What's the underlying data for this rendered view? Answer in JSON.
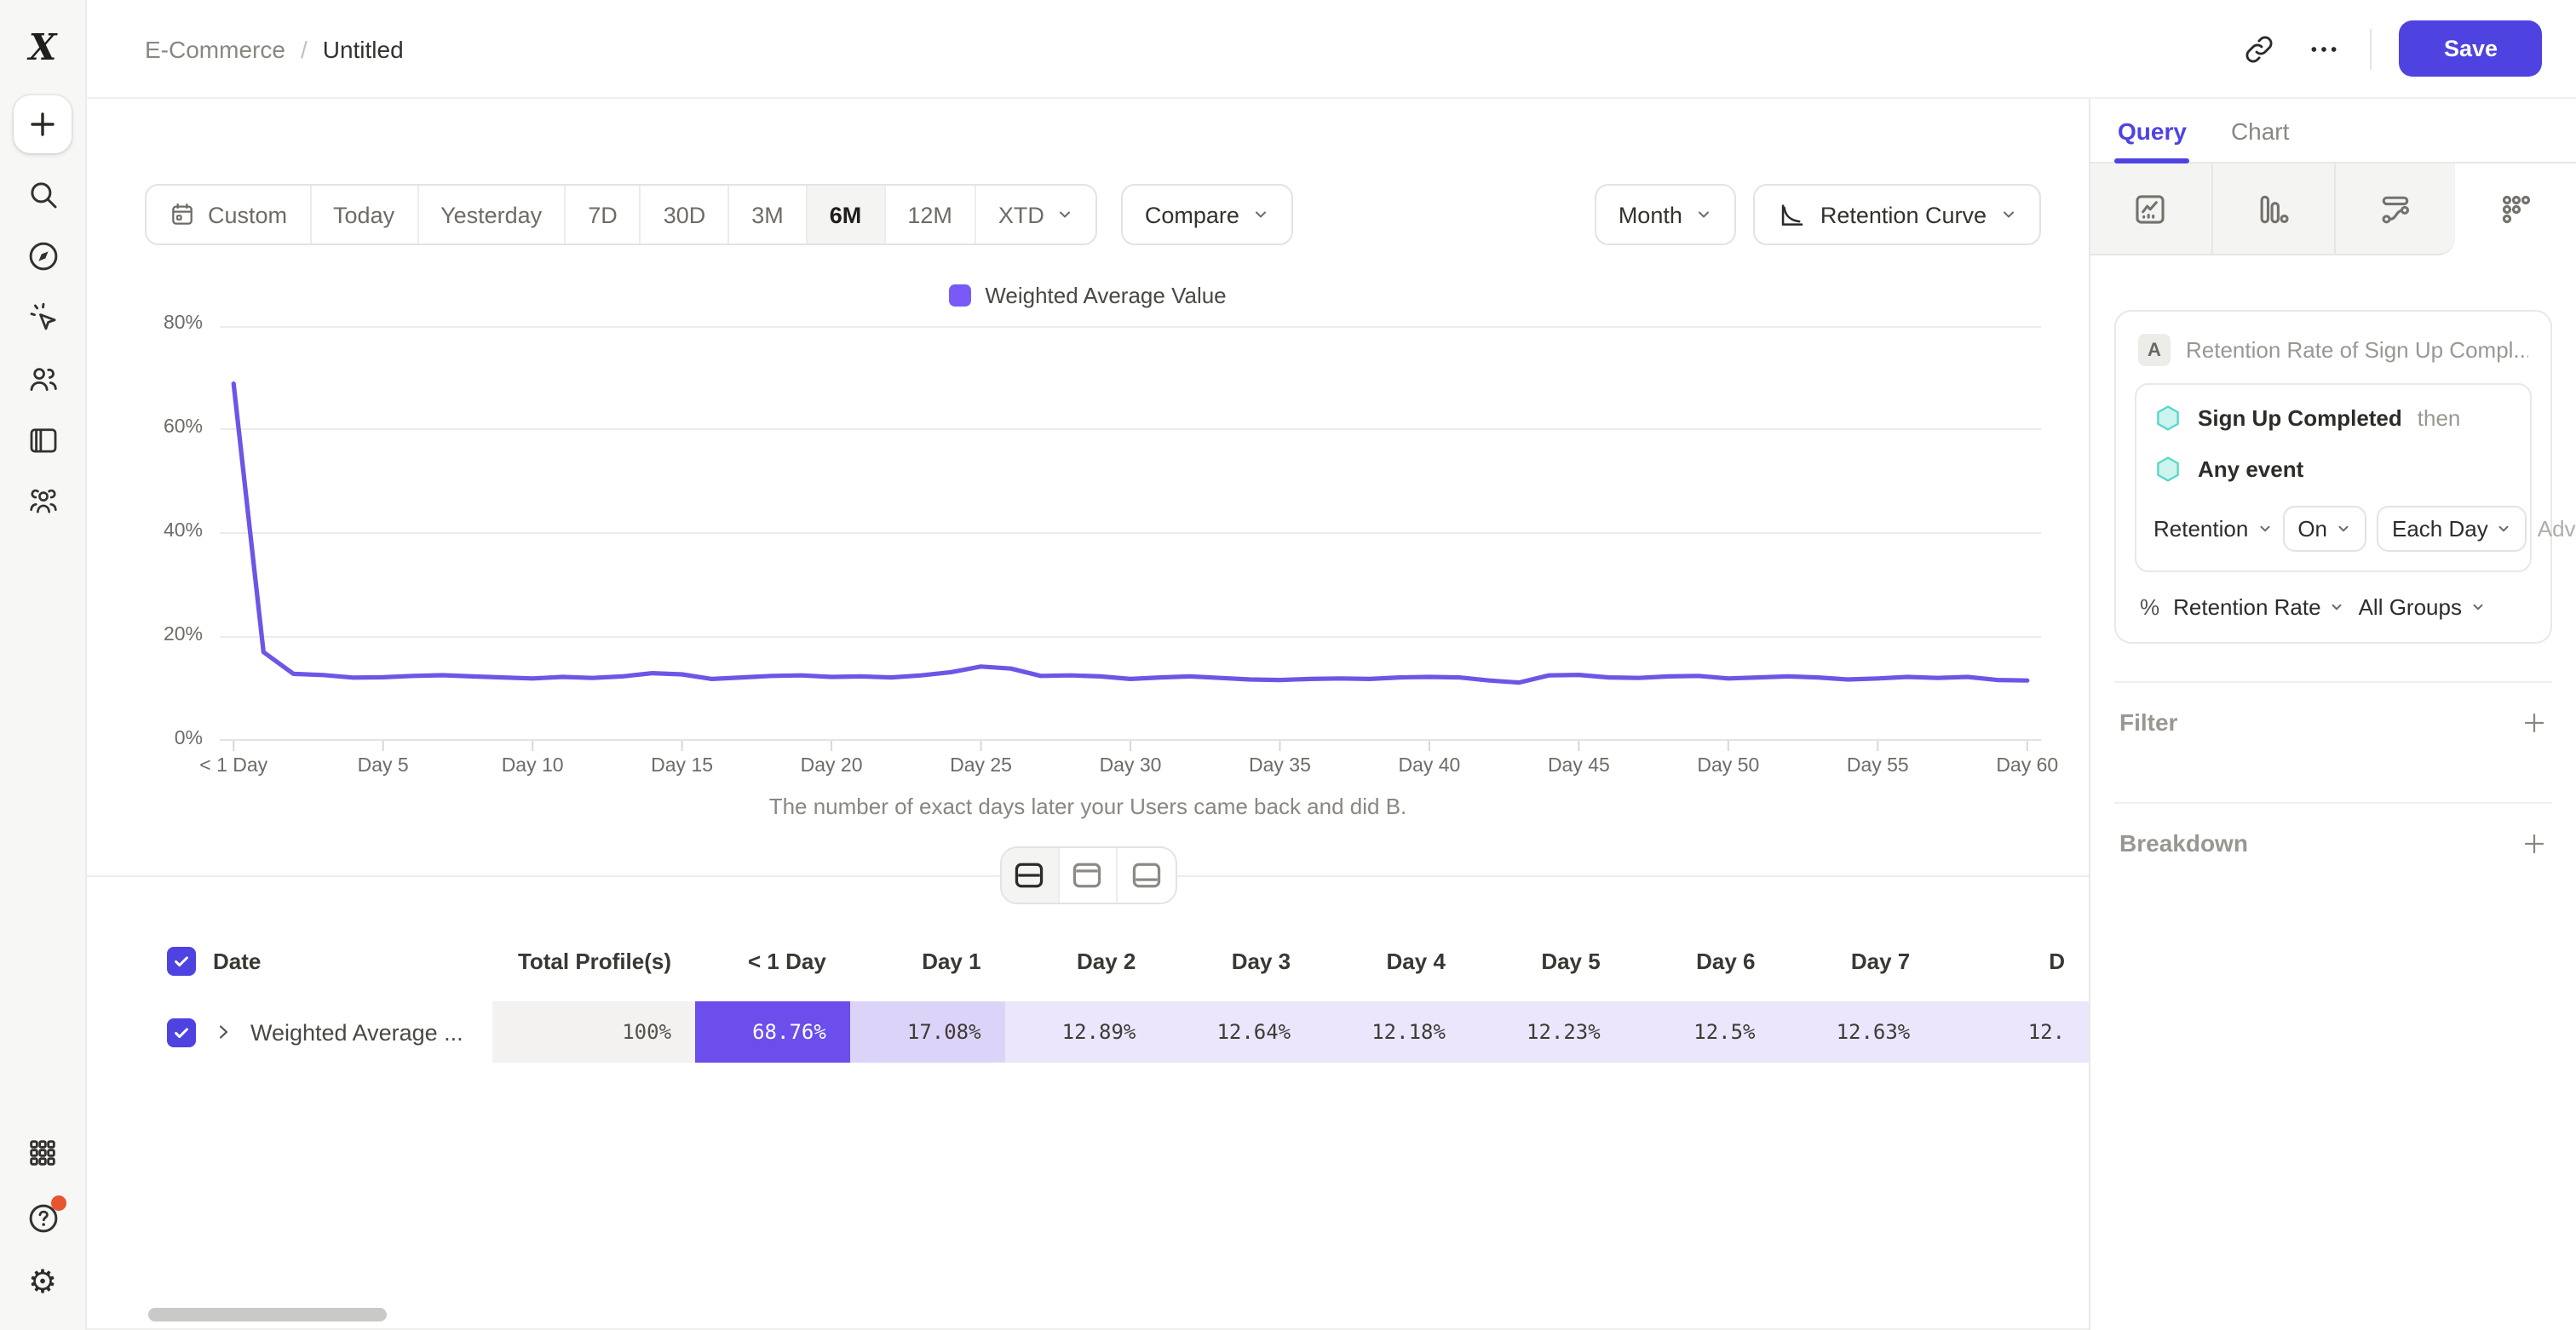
{
  "colors": {
    "accent": "#4E43E1",
    "line": "#6F55E6",
    "legend_square": "#7A5AF6",
    "hex_fill": "#CDF3EE",
    "hex_stroke": "#56D6C9",
    "retention_icon": "#3ECCC0",
    "notification_dot": "#E8542F"
  },
  "sidebar": {
    "logo": "mixpanel-logo",
    "icons_top": [
      "plus",
      "search",
      "compass",
      "cursor-spark",
      "users",
      "boards",
      "cohorts"
    ],
    "icons_bottom": [
      "apps-grid",
      "help",
      "settings-gear"
    ]
  },
  "header": {
    "breadcrumb_root": "E-Commerce",
    "breadcrumb_separator": "/",
    "breadcrumb_current": "Untitled",
    "icons": [
      "link",
      "more-ellipsis"
    ],
    "save_label": "Save"
  },
  "toolbar": {
    "date_ranges": [
      "Custom",
      "Today",
      "Yesterday",
      "7D",
      "30D",
      "3M",
      "6M",
      "12M",
      "XTD"
    ],
    "selected_range": "6M",
    "dropdown_ranges": [
      "XTD"
    ],
    "icon_ranges": [
      "Custom"
    ],
    "compare_label": "Compare",
    "granularity_label": "Month",
    "chart_type_label": "Retention Curve"
  },
  "chart_data": {
    "type": "line",
    "legend": [
      "Weighted Average Value"
    ],
    "xlabel": "The number of exact days later your Users came back and did B.",
    "ylim": [
      0,
      80
    ],
    "y_ticks": [
      80,
      60,
      40,
      20,
      0
    ],
    "y_tick_suffix": "%",
    "x_tick_labels": [
      "< 1 Day",
      "Day 5",
      "Day 10",
      "Day 15",
      "Day 20",
      "Day 25",
      "Day 30",
      "Day 35",
      "Day 40",
      "Day 45",
      "Day 50",
      "Day 55",
      "Day 60"
    ],
    "x_tick_days": [
      0,
      5,
      10,
      15,
      20,
      25,
      30,
      35,
      40,
      45,
      50,
      55,
      60
    ],
    "grid": true,
    "legend_position": "top-center",
    "series": [
      {
        "name": "Weighted Average Value",
        "color": "#6F55E6",
        "x_days": [
          0,
          1,
          2,
          3,
          4,
          5,
          6,
          7,
          8,
          9,
          10,
          11,
          12,
          13,
          14,
          15,
          16,
          17,
          18,
          19,
          20,
          21,
          22,
          23,
          24,
          25,
          26,
          27,
          28,
          29,
          30,
          31,
          32,
          33,
          34,
          35,
          36,
          37,
          38,
          39,
          40,
          41,
          42,
          43,
          44,
          45,
          46,
          47,
          48,
          49,
          50,
          51,
          52,
          53,
          54,
          55,
          56,
          57,
          58,
          59,
          60
        ],
        "values": [
          68.76,
          17.08,
          12.89,
          12.64,
          12.18,
          12.23,
          12.5,
          12.63,
          12.4,
          12.2,
          12.0,
          12.3,
          12.1,
          12.4,
          13.0,
          12.8,
          11.9,
          12.2,
          12.5,
          12.6,
          12.3,
          12.4,
          12.2,
          12.6,
          13.2,
          14.3,
          13.9,
          12.5,
          12.6,
          12.4,
          11.9,
          12.2,
          12.4,
          12.1,
          11.8,
          11.7,
          11.9,
          12.0,
          11.9,
          12.2,
          12.3,
          12.2,
          11.6,
          11.2,
          12.6,
          12.7,
          12.2,
          12.1,
          12.4,
          12.5,
          12.0,
          12.2,
          12.4,
          12.2,
          11.8,
          12.0,
          12.3,
          12.1,
          12.3,
          11.7,
          11.6
        ]
      }
    ]
  },
  "view_toggle": {
    "options": [
      "split-view",
      "chart-only-view",
      "table-only-view"
    ],
    "selected": "split-view"
  },
  "table": {
    "select_all_checked": true,
    "columns": [
      "Date",
      "Total Profile(s)",
      "< 1 Day",
      "Day 1",
      "Day 2",
      "Day 3",
      "Day 4",
      "Day 5",
      "Day 6",
      "Day 7",
      "D"
    ],
    "rows": [
      {
        "checked": true,
        "label": "Weighted Average ...",
        "cells": [
          {
            "text": "100%",
            "bg": "#F3F2F0",
            "fg": "#55524D"
          },
          {
            "text": "68.76%",
            "bg": "#6B4EEB",
            "fg": "#FFFFFF"
          },
          {
            "text": "17.08%",
            "bg": "#DCD4F8",
            "fg": "#3E3B37"
          },
          {
            "text": "12.89%",
            "bg": "#EBE6FB",
            "fg": "#3E3B37"
          },
          {
            "text": "12.64%",
            "bg": "#EBE6FB",
            "fg": "#3E3B37"
          },
          {
            "text": "12.18%",
            "bg": "#EBE6FB",
            "fg": "#3E3B37"
          },
          {
            "text": "12.23%",
            "bg": "#EBE6FB",
            "fg": "#3E3B37"
          },
          {
            "text": "12.5%",
            "bg": "#EBE6FB",
            "fg": "#3E3B37"
          },
          {
            "text": "12.63%",
            "bg": "#EBE6FB",
            "fg": "#3E3B37"
          },
          {
            "text": "12.",
            "bg": "#EBE6FB",
            "fg": "#3E3B37"
          }
        ]
      }
    ]
  },
  "query_panel": {
    "tabs": [
      "Query",
      "Chart"
    ],
    "active_tab": "Query",
    "report_types": [
      "insights",
      "funnels",
      "flows",
      "retention"
    ],
    "selected_report_type": "retention",
    "query": {
      "badge": "A",
      "title": "Retention Rate of Sign Up Compl...",
      "first_event": "Sign Up Completed",
      "then_label": "then",
      "second_event": "Any event",
      "retention_label": "Retention",
      "on_label": "On",
      "each_label": "Each Day",
      "adv_label": "Adv...",
      "measure_prefix": "%",
      "measure_label": "Retention Rate",
      "groups_label": "All Groups"
    },
    "filter_label": "Filter",
    "breakdown_label": "Breakdown"
  }
}
